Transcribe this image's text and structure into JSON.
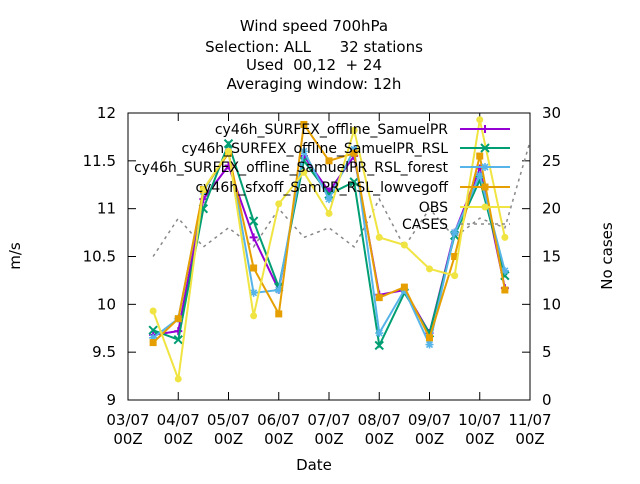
{
  "chart_data": {
    "type": "line",
    "title_lines": [
      "Wind speed 700hPa",
      "Selection: ALL      32 stations",
      "Used  00,12  + 24",
      "Averaging window: 12h"
    ],
    "xlabel": "Date",
    "ylabel": "m/s",
    "y2label": "No cases",
    "xlim": [
      "2023-07-03T00:00",
      "2023-07-11T00:00"
    ],
    "ylim": [
      9,
      12
    ],
    "y2lim": [
      0,
      30
    ],
    "x_tick_labels": [
      [
        "03/07",
        "00Z"
      ],
      [
        "04/07",
        "00Z"
      ],
      [
        "05/07",
        "00Z"
      ],
      [
        "06/07",
        "00Z"
      ],
      [
        "07/07",
        "00Z"
      ],
      [
        "08/07",
        "00Z"
      ],
      [
        "09/07",
        "00Z"
      ],
      [
        "10/07",
        "00Z"
      ],
      [
        "11/07",
        "00Z"
      ]
    ],
    "y_ticks": [
      "9",
      "9.5",
      "10",
      "10.5",
      "11",
      "11.5",
      "12"
    ],
    "y2_ticks": [
      "0",
      "5",
      "10",
      "15",
      "20",
      "25",
      "30"
    ],
    "grid": false,
    "legend_position": "top-right",
    "x": [
      "2023-07-03T12:00",
      "2023-07-04T00:00",
      "2023-07-04T12:00",
      "2023-07-05T00:00",
      "2023-07-05T12:00",
      "2023-07-06T00:00",
      "2023-07-06T12:00",
      "2023-07-07T00:00",
      "2023-07-07T12:00",
      "2023-07-08T00:00",
      "2023-07-08T12:00",
      "2023-07-09T00:00",
      "2023-07-09T12:00",
      "2023-07-10T00:00",
      "2023-07-10T12:00",
      "2023-07-11T00:00"
    ],
    "series": [
      {
        "name": "cy46h_SURFEX_offline_SamuelPR",
        "color": "#9400d3",
        "marker": "plus",
        "values": [
          9.68,
          9.72,
          11.1,
          11.45,
          10.7,
          10.15,
          11.55,
          11.18,
          11.55,
          10.1,
          10.15,
          9.7,
          10.75,
          11.42,
          10.17,
          null
        ]
      },
      {
        "name": "cy46h_SURFEX_offline_SamuelPR_RSL",
        "color": "#009e73",
        "marker": "cross",
        "values": [
          9.73,
          9.63,
          11.0,
          11.68,
          10.87,
          10.18,
          11.5,
          11.15,
          11.28,
          9.57,
          10.12,
          9.7,
          10.72,
          11.3,
          10.3,
          null
        ]
      },
      {
        "name": "cy46h_SURFEX_offline_SamuelPR_RSL_forest",
        "color": "#56b4e9",
        "marker": "star",
        "values": [
          9.65,
          9.85,
          11.18,
          11.6,
          10.12,
          10.15,
          11.6,
          11.1,
          11.62,
          9.7,
          10.15,
          9.58,
          10.75,
          11.35,
          10.35,
          null
        ]
      },
      {
        "name": "cy46h_sfxoff_SamPR_RSL_lowvegoff",
        "color": "#e69f00",
        "marker": "box",
        "values": [
          9.6,
          9.85,
          11.2,
          11.58,
          10.38,
          9.9,
          11.88,
          11.5,
          11.58,
          10.07,
          10.18,
          9.65,
          10.5,
          11.55,
          10.15,
          null
        ]
      },
      {
        "name": "OBS",
        "color": "#f0e442",
        "marker": "circle",
        "values": [
          9.93,
          9.22,
          11.2,
          11.6,
          9.88,
          11.05,
          11.38,
          10.95,
          11.82,
          10.7,
          10.62,
          10.37,
          10.3,
          11.93,
          10.7,
          null
        ]
      },
      {
        "name": "CASES",
        "color": "#888888",
        "marker": "none",
        "dashed": true,
        "axis": "y2",
        "values": [
          15,
          19,
          16,
          18,
          16,
          20,
          17,
          18,
          16,
          21,
          16,
          20,
          17,
          19,
          18,
          27
        ]
      }
    ]
  }
}
